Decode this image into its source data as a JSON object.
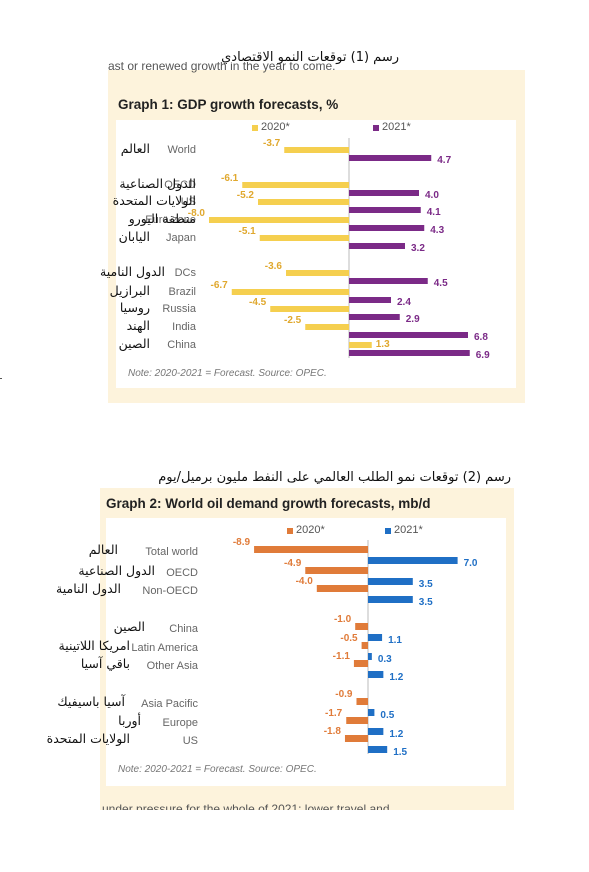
{
  "chart_data": [
    {
      "type": "bar",
      "arabic_title": "رسم (1) توقعات النمو الاقتصادي",
      "title": "Graph 1: GDP growth forecasts, %",
      "top_cut_text": "ast or renewed growth in the year to come.",
      "note": "Note: 2020-2021 = Forecast. Source: OPEC.",
      "colors": {
        "2020": "#f5cf4f",
        "2021": "#7b2a87"
      },
      "series": [
        {
          "name": "2020*",
          "values": [
            -3.7,
            -6.1,
            -5.2,
            -8.0,
            -5.1,
            -3.6,
            -6.7,
            -4.5,
            -2.5,
            1.3
          ]
        },
        {
          "name": "2021*",
          "values": [
            4.7,
            4.0,
            4.1,
            4.3,
            3.2,
            4.5,
            2.4,
            2.9,
            6.8,
            6.9
          ]
        }
      ],
      "categories": [
        "World",
        "OECD",
        "US",
        "Euro-zone",
        "Japan",
        "DCs",
        "Brazil",
        "Russia",
        "India",
        "China"
      ],
      "categories_arabic": [
        "العالم",
        "الدول الصناعية",
        "الولايات المتحدة",
        "منطقة اليورو",
        "اليابان",
        "الدول النامية",
        "البرازيل",
        "روسيا",
        "الهند",
        "الصين"
      ],
      "xlim": [
        -8.0,
        7.5
      ]
    },
    {
      "type": "bar",
      "arabic_title": "رسم (2) توقعات نمو الطلب العالمي على النفط مليون برميل/يوم",
      "title": "Graph 2: World oil demand growth forecasts, mb/d",
      "bottom_cut_text": "under pressure for the whole of 2021: lower travel and",
      "note": "Note: 2020-2021 = Forecast. Source: OPEC.",
      "colors": {
        "2020": "#e07b39",
        "2021": "#1f6fc5"
      },
      "series": [
        {
          "name": "2020*",
          "values": [
            -8.9,
            -4.9,
            -4.0,
            -1.0,
            -0.5,
            -1.1,
            -0.9,
            -1.7,
            -1.8
          ]
        },
        {
          "name": "2021*",
          "values": [
            7.0,
            3.5,
            3.5,
            1.1,
            0.3,
            1.2,
            0.5,
            1.2,
            1.5
          ]
        }
      ],
      "categories": [
        "Total world",
        "OECD",
        "Non-OECD",
        "China",
        "Latin America",
        "Other Asia",
        "Asia Pacific",
        "Europe",
        "US"
      ],
      "categories_arabic": [
        "العالم",
        "الدول الصناعية",
        "الدول النامية",
        "الصين",
        "امريكا اللاتينية",
        "باقي آسيا",
        "آسيا باسيفيك",
        "أوربا",
        "الولايات المتحدة"
      ],
      "xlim": [
        -9.0,
        7.5
      ]
    }
  ]
}
